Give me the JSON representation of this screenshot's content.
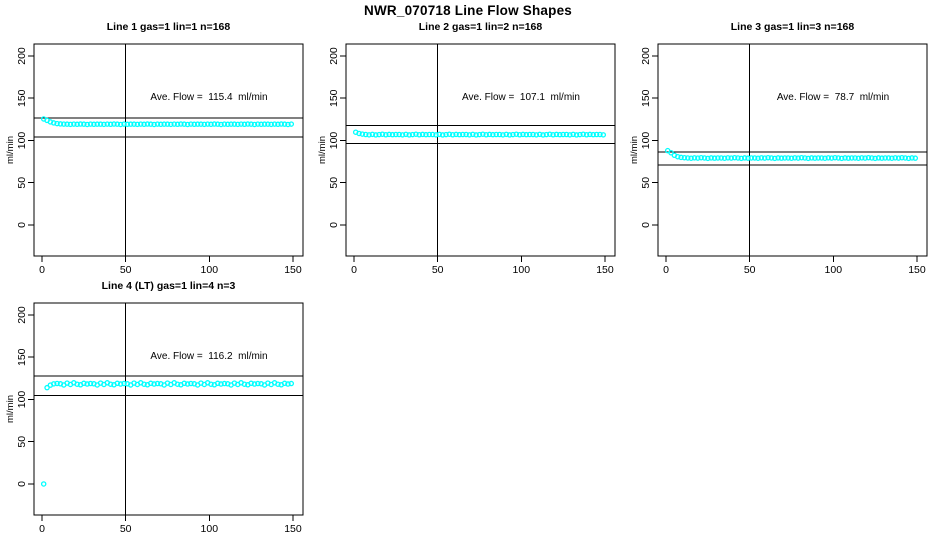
{
  "figure": {
    "title": "NWR_070718  Line Flow Shapes",
    "background_color": "#ffffff",
    "axis_color": "#000000",
    "point_color": "#00ffff"
  },
  "chart_data": [
    {
      "type": "scatter",
      "title": "Line 1 gas=1 lin=1 n=168",
      "annotation": "Ave. Flow =  115.4  ml/min",
      "ave_flow_ml_min": 115.4,
      "n": 168,
      "xlabel": "",
      "ylabel": "ml/min",
      "x_ticks": [
        0,
        50,
        100,
        150
      ],
      "y_ticks": [
        0,
        50,
        100,
        150,
        200
      ],
      "xlim": [
        -4.8,
        156
      ],
      "ylim": [
        -36.7,
        214.2
      ],
      "vline_x": 50,
      "hlines": [
        103.9,
        126.9
      ],
      "x0": 1,
      "dx": 2,
      "y": [
        125.5,
        123.8,
        122.0,
        120.8,
        120.0,
        119.6,
        119.4,
        119.3,
        119.1,
        119.4,
        119.2,
        119.5,
        119.3,
        119.0,
        119.4,
        119.2,
        119.3,
        119.3,
        119.1,
        119.4,
        119.2,
        119.5,
        119.3,
        119.0,
        119.4,
        119.2,
        119.3,
        119.3,
        119.1,
        119.4,
        119.2,
        119.5,
        119.3,
        119.0,
        119.4,
        119.2,
        119.3,
        119.3,
        119.1,
        119.4,
        119.2,
        119.5,
        119.3,
        119.0,
        119.4,
        119.2,
        119.3,
        119.3,
        119.1,
        119.4,
        119.2,
        119.5,
        119.3,
        119.0,
        119.4,
        119.2,
        119.3,
        119.3,
        119.1,
        119.4,
        119.2,
        119.5,
        119.3,
        119.0,
        119.4,
        119.2,
        119.3,
        119.3,
        119.1,
        119.4,
        119.2,
        119.5,
        119.3,
        119.0,
        119.4
      ]
    },
    {
      "type": "scatter",
      "title": "Line 2 gas=1 lin=2 n=168",
      "annotation": "Ave. Flow =  107.1  ml/min",
      "ave_flow_ml_min": 107.1,
      "n": 168,
      "xlabel": "",
      "ylabel": "ml/min",
      "x_ticks": [
        0,
        50,
        100,
        150
      ],
      "y_ticks": [
        0,
        50,
        100,
        150,
        200
      ],
      "xlim": [
        -4.8,
        156
      ],
      "ylim": [
        -36.7,
        214.2
      ],
      "vline_x": 50,
      "hlines": [
        96.4,
        117.8
      ],
      "x0": 1,
      "dx": 2,
      "y": [
        109.8,
        108.3,
        107.6,
        107.1,
        106.7,
        107.3,
        106.6,
        107.0,
        107.4,
        106.8,
        107.2,
        106.9,
        107.1,
        107.1,
        106.7,
        107.3,
        106.6,
        107.0,
        107.4,
        106.8,
        107.2,
        106.9,
        107.1,
        107.1,
        106.7,
        107.3,
        106.6,
        107.0,
        107.4,
        106.8,
        107.2,
        106.9,
        107.1,
        107.1,
        106.7,
        107.3,
        106.6,
        107.0,
        107.4,
        106.8,
        107.2,
        106.9,
        107.1,
        107.1,
        106.7,
        107.3,
        106.6,
        107.0,
        107.4,
        106.8,
        107.2,
        106.9,
        107.1,
        107.1,
        106.7,
        107.3,
        106.6,
        107.0,
        107.4,
        106.8,
        107.2,
        106.9,
        107.1,
        107.1,
        106.7,
        107.3,
        106.6,
        107.0,
        107.4,
        106.8,
        107.2,
        106.9,
        107.1,
        107.1,
        106.7
      ]
    },
    {
      "type": "scatter",
      "title": "Line 3 gas=1 lin=3 n=168",
      "annotation": "Ave. Flow =  78.7  ml/min",
      "ave_flow_ml_min": 78.7,
      "n": 168,
      "xlabel": "",
      "ylabel": "ml/min",
      "x_ticks": [
        0,
        50,
        100,
        150
      ],
      "y_ticks": [
        0,
        50,
        100,
        150,
        200
      ],
      "xlim": [
        -4.8,
        156
      ],
      "ylim": [
        -36.7,
        214.2
      ],
      "vline_x": 50,
      "hlines": [
        70.8,
        86.6
      ],
      "x0": 1,
      "dx": 2,
      "y": [
        88.0,
        85.5,
        82.5,
        80.8,
        80.0,
        79.6,
        79.3,
        79.0,
        79.5,
        79.2,
        79.6,
        79.3,
        78.9,
        79.4,
        79.1,
        79.3,
        79.3,
        79.0,
        79.5,
        79.2,
        79.6,
        79.3,
        78.9,
        79.4,
        79.1,
        79.3,
        79.3,
        79.0,
        79.5,
        79.2,
        79.6,
        79.3,
        78.9,
        79.4,
        79.1,
        79.3,
        79.3,
        79.0,
        79.5,
        79.2,
        79.6,
        79.3,
        78.9,
        79.4,
        79.1,
        79.3,
        79.3,
        79.0,
        79.5,
        79.2,
        79.6,
        79.3,
        78.9,
        79.4,
        79.1,
        79.3,
        79.3,
        79.0,
        79.5,
        79.2,
        79.6,
        79.3,
        78.9,
        79.4,
        79.1,
        79.3,
        79.3,
        79.0,
        79.5,
        79.2,
        79.6,
        79.3,
        78.9,
        79.4,
        79.1
      ]
    },
    {
      "type": "scatter",
      "title": "Line 4 (LT) gas=1 lin=4 n=3",
      "annotation": "Ave. Flow =  116.2  ml/min",
      "ave_flow_ml_min": 116.2,
      "n": 3,
      "xlabel": "",
      "ylabel": "ml/min",
      "x_ticks": [
        0,
        50,
        100,
        150
      ],
      "y_ticks": [
        0,
        50,
        100,
        150,
        200
      ],
      "xlim": [
        -4.8,
        156
      ],
      "ylim": [
        -36.7,
        214.2
      ],
      "vline_x": 50,
      "hlines": [
        104.6,
        127.8
      ],
      "x0": 1,
      "dx": 2,
      "y": [
        0,
        114.0,
        117.0,
        118.5,
        119.0,
        118.6,
        117.2,
        119.4,
        117.8,
        119.8,
        118.1,
        117.4,
        119.2,
        118.3,
        118.9,
        118.6,
        117.2,
        119.4,
        117.8,
        119.8,
        118.1,
        117.4,
        119.2,
        118.3,
        118.9,
        118.6,
        117.2,
        119.4,
        117.8,
        119.8,
        118.1,
        117.4,
        119.2,
        118.3,
        118.9,
        118.6,
        117.2,
        119.4,
        117.8,
        119.8,
        118.1,
        117.4,
        119.2,
        118.3,
        118.9,
        118.6,
        117.2,
        119.4,
        117.8,
        119.8,
        118.1,
        117.4,
        119.2,
        118.3,
        118.9,
        118.6,
        117.2,
        119.4,
        117.8,
        119.8,
        118.1,
        117.4,
        119.2,
        118.3,
        118.9,
        118.6,
        117.2,
        119.4,
        117.8,
        119.8,
        118.1,
        117.4,
        119.2,
        118.3,
        118.9
      ]
    }
  ]
}
